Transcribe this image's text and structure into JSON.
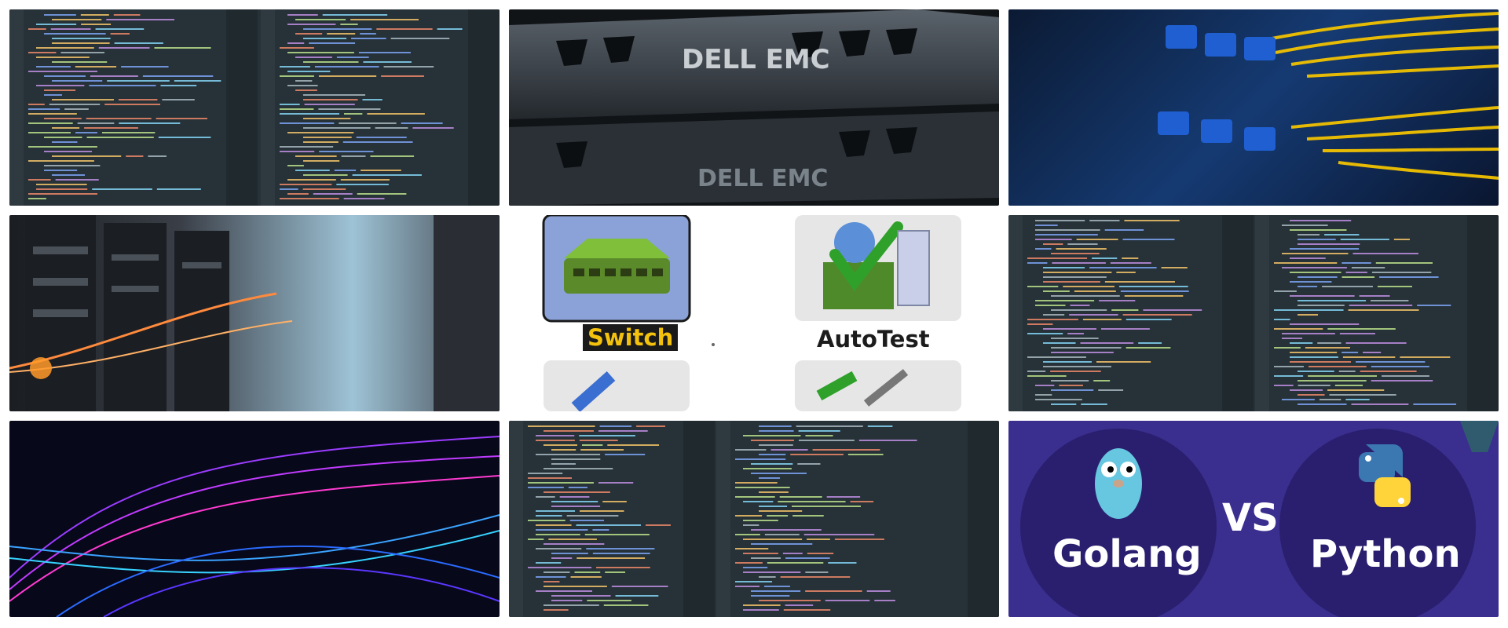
{
  "tiles": {
    "switch_label": "Switch",
    "autotest_label": "AutoTest",
    "golang_label": "Golang",
    "vs_label": "VS",
    "python_label": "Python",
    "server_brand": "DELL EMC"
  },
  "colors": {
    "code_bg": "#263238",
    "switch_label_fg": "#f4c20d",
    "gopy_bg": "#3a2f8f",
    "fiber_cable": "#f2c200"
  }
}
